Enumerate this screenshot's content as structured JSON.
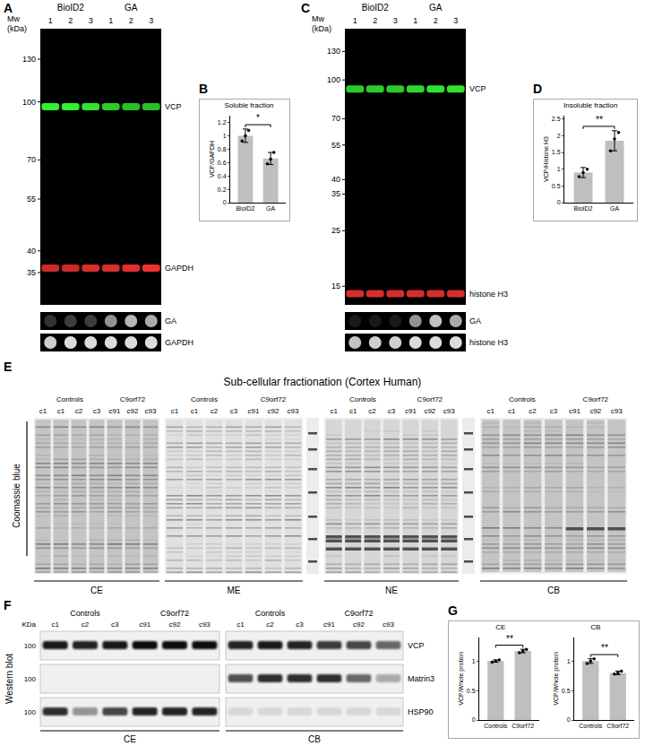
{
  "letters": [
    "A",
    "B",
    "C",
    "D",
    "E",
    "F",
    "G"
  ],
  "blots": [
    {
      "mw_title": [
        "Mw",
        "(kDa)"
      ],
      "groups": [
        {
          "name": "BioID2",
          "lanes": [
            "1",
            "2",
            "3"
          ]
        },
        {
          "name": "GA",
          "lanes": [
            "1",
            "2",
            "3"
          ]
        }
      ],
      "mw_range": [
        150,
        30
      ],
      "markers": [
        130,
        100,
        70,
        55,
        40,
        35
      ],
      "bands": [
        {
          "label": "VCP",
          "mw": 97,
          "color": "#33f033",
          "signal": [
            1,
            1,
            0.95,
            0.85,
            0.8,
            0.8
          ]
        },
        {
          "label": "GAPDH",
          "mw": 36,
          "color": "#ee3030",
          "signal": [
            0.85,
            0.85,
            0.9,
            0.9,
            0.95,
            1
          ]
        }
      ],
      "dots": [
        {
          "label": "GA",
          "signal": [
            0.2,
            0.25,
            0.25,
            0.6,
            0.75,
            0.7
          ]
        },
        {
          "label": "GAPDH",
          "signal": [
            0.85,
            0.9,
            0.9,
            0.9,
            0.9,
            0.9
          ]
        }
      ]
    },
    {
      "mw_title": [
        "Mw",
        "(kDa)"
      ],
      "groups": [
        {
          "name": "BioID2",
          "lanes": [
            "1",
            "2",
            "3"
          ]
        },
        {
          "name": "GA",
          "lanes": [
            "1",
            "2",
            "3"
          ]
        }
      ],
      "mw_range": [
        150,
        13.5
      ],
      "markers": [
        130,
        100,
        70,
        55,
        40,
        35,
        25,
        15
      ],
      "bands": [
        {
          "label": "VCP",
          "mw": 92,
          "color": "#33f033",
          "signal": [
            0.85,
            0.85,
            0.85,
            0.9,
            0.95,
            0.95
          ]
        },
        {
          "label": "histone H3",
          "mw": 14,
          "color": "#ee3030",
          "signal": [
            0.9,
            0.9,
            0.9,
            0.9,
            0.9,
            0.9
          ]
        }
      ],
      "dots": [
        {
          "label": "GA",
          "signal": [
            0.1,
            0.1,
            0.1,
            0.6,
            0.8,
            0.7
          ]
        },
        {
          "label": "histone H3",
          "signal": [
            0.8,
            0.85,
            0.85,
            0.9,
            0.9,
            0.9
          ]
        }
      ]
    }
  ],
  "gel": {
    "title": "Sub-cellular fractionation (Cortex Human)",
    "side_label": "Coomassie blue",
    "groups": [
      "Controls",
      "C9orf72"
    ],
    "lanes": [
      [
        "c1",
        "c1",
        "c2",
        "c3"
      ],
      [
        "c91",
        "c92",
        "c93"
      ]
    ],
    "fractions": [
      "CE",
      "ME",
      "NE",
      "CB"
    ]
  },
  "western": {
    "side_label": "Western blot",
    "mw_title": "KDa",
    "groups": [
      "Controls",
      "C9orf72"
    ],
    "lanes": [
      [
        "c1",
        "c2",
        "c3"
      ],
      [
        "c91",
        "c92",
        "c93"
      ]
    ],
    "fractions": [
      "CE",
      "CB"
    ],
    "rows": [
      {
        "label": "VCP",
        "marker": 100,
        "signal": [
          [
            0.95,
            0.9,
            0.95,
            1,
            1,
            1
          ],
          [
            0.9,
            0.95,
            0.9,
            0.8,
            0.75,
            0.6
          ]
        ]
      },
      {
        "label": "Matrin3",
        "marker": 100,
        "signal": [
          [
            0,
            0,
            0,
            0,
            0,
            0
          ],
          [
            0.7,
            0.85,
            0.85,
            0.85,
            0.6,
            0.3
          ]
        ]
      },
      {
        "label": "HSP90",
        "marker": 100,
        "signal": [
          [
            0.85,
            0.4,
            0.75,
            0.9,
            0.9,
            0.9
          ],
          [
            0.1,
            0.1,
            0.1,
            0.1,
            0.1,
            0.1
          ]
        ]
      }
    ]
  },
  "chart_data": [
    {
      "type": "bar",
      "title": "Soluble fraction",
      "y_label": "VCP/GAPDH",
      "categories": [
        "BioID2",
        "GA"
      ],
      "values": [
        1.0,
        0.66
      ],
      "errors": [
        0.1,
        0.09
      ],
      "points": [
        [
          0.92,
          1.0,
          1.08
        ],
        [
          0.58,
          0.65,
          0.75
        ]
      ],
      "color": "#bfbfbf",
      "ylim": [
        0,
        1.3
      ],
      "yticks": [
        0,
        0.2,
        0.4,
        0.6,
        0.8,
        1,
        1.2
      ],
      "grid": false,
      "significance": "*"
    },
    {
      "type": "bar",
      "title": "Insoluble fraction",
      "y_label": "VCP/Histone H3",
      "categories": [
        "BioID2",
        "GA"
      ],
      "values": [
        0.9,
        1.85
      ],
      "errors": [
        0.15,
        0.3
      ],
      "points": [
        [
          0.78,
          0.9,
          1.0
        ],
        [
          1.55,
          1.9,
          2.1
        ]
      ],
      "color": "#bfbfbf",
      "ylim": [
        0,
        2.6
      ],
      "yticks": [
        0,
        0.5,
        1,
        1.5,
        2,
        2.5
      ],
      "grid": false,
      "significance": "**"
    },
    {
      "type": "bar",
      "title": "CE",
      "y_label": "VCP/Whole protein",
      "categories": [
        "Controls",
        "C9orf72"
      ],
      "values": [
        1.0,
        1.17
      ],
      "errors": [
        0.02,
        0.03
      ],
      "points": [
        [
          0.98,
          1.0,
          1.02
        ],
        [
          1.14,
          1.17,
          1.2
        ]
      ],
      "color": "#bfbfbf",
      "ylim": [
        0,
        1.4
      ],
      "yticks": [
        0,
        0.5,
        1
      ],
      "grid": false,
      "significance": "**"
    },
    {
      "type": "bar",
      "title": "CB",
      "y_label": "VCP/Whole protein",
      "categories": [
        "Controls",
        "C9orf72"
      ],
      "values": [
        1.0,
        0.8
      ],
      "errors": [
        0.04,
        0.03
      ],
      "points": [
        [
          0.96,
          1.0,
          1.04
        ],
        [
          0.78,
          0.8,
          0.83
        ]
      ],
      "color": "#bfbfbf",
      "ylim": [
        0,
        1.4
      ],
      "yticks": [
        0,
        0.5,
        1
      ],
      "grid": false,
      "significance": "**"
    }
  ]
}
